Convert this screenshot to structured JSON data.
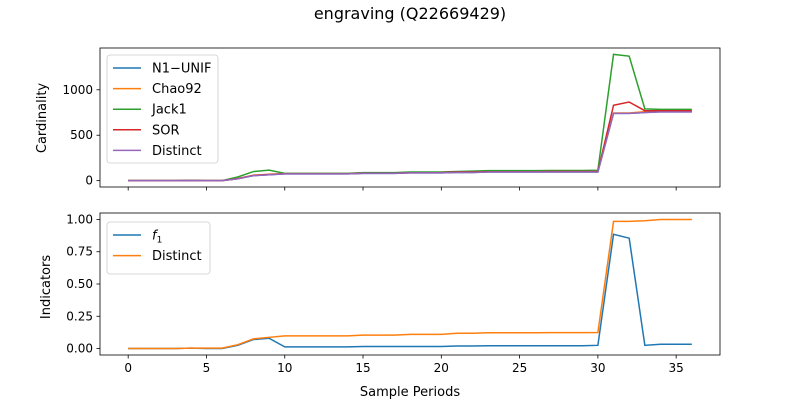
{
  "figure_title": "engraving (Q22669429)",
  "chart_data": [
    {
      "type": "line",
      "ylabel": "Cardinality",
      "xlabel": "",
      "xlim": [
        -1.8,
        37.8
      ],
      "ylim": [
        -70,
        1460
      ],
      "xticks": [
        0,
        5,
        10,
        15,
        20,
        25,
        30,
        35
      ],
      "xtick_labels": [
        "",
        "",
        "",
        "",
        "",
        "",
        "",
        ""
      ],
      "yticks": [
        0,
        500,
        1000
      ],
      "ytick_labels": [
        "0",
        "500",
        "1000"
      ],
      "legend_position": "upper left",
      "x": [
        0,
        1,
        2,
        3,
        4,
        5,
        6,
        7,
        8,
        9,
        10,
        11,
        12,
        13,
        14,
        15,
        16,
        17,
        18,
        19,
        20,
        21,
        22,
        23,
        24,
        25,
        26,
        27,
        28,
        29,
        30,
        31,
        32,
        33,
        34,
        35,
        36
      ],
      "series": [
        {
          "name": "N1−UNIF",
          "color": "#1f77b4",
          "values": [
            0,
            0,
            0,
            0,
            2,
            0,
            0,
            20,
            55,
            65,
            75,
            75,
            75,
            75,
            75,
            80,
            80,
            80,
            85,
            85,
            85,
            90,
            90,
            95,
            95,
            95,
            95,
            95,
            95,
            95,
            95,
            740,
            740,
            750,
            760,
            760,
            760
          ]
        },
        {
          "name": "Chao92",
          "color": "#ff7f0e",
          "values": [
            0,
            0,
            0,
            0,
            2,
            0,
            0,
            22,
            60,
            70,
            78,
            78,
            78,
            78,
            78,
            85,
            85,
            85,
            88,
            88,
            90,
            95,
            95,
            98,
            98,
            98,
            98,
            100,
            100,
            100,
            100,
            745,
            745,
            760,
            775,
            775,
            775
          ]
        },
        {
          "name": "Jack1",
          "color": "#2ca02c",
          "values": [
            0,
            0,
            0,
            0,
            3,
            0,
            0,
            40,
            100,
            115,
            80,
            80,
            80,
            80,
            80,
            88,
            88,
            88,
            95,
            95,
            95,
            100,
            105,
            110,
            110,
            110,
            110,
            112,
            112,
            112,
            115,
            1390,
            1370,
            790,
            785,
            785,
            785
          ]
        },
        {
          "name": "SOR",
          "color": "#d62728",
          "values": [
            0,
            0,
            0,
            0,
            2,
            0,
            0,
            22,
            58,
            68,
            76,
            76,
            76,
            76,
            76,
            82,
            82,
            82,
            87,
            87,
            88,
            95,
            95,
            98,
            98,
            98,
            98,
            100,
            100,
            100,
            100,
            830,
            865,
            770,
            770,
            770,
            770
          ]
        },
        {
          "name": "Distinct",
          "color": "#9467bd",
          "values": [
            0,
            0,
            0,
            0,
            2,
            0,
            0,
            20,
            55,
            65,
            75,
            75,
            75,
            75,
            75,
            80,
            80,
            80,
            85,
            85,
            85,
            90,
            90,
            95,
            95,
            95,
            95,
            95,
            95,
            95,
            95,
            740,
            740,
            750,
            755,
            755,
            755
          ]
        }
      ]
    },
    {
      "type": "line",
      "ylabel": "Indicators",
      "xlabel": "Sample Periods",
      "xlim": [
        -1.8,
        37.8
      ],
      "ylim": [
        -0.05,
        1.05
      ],
      "xticks": [
        0,
        5,
        10,
        15,
        20,
        25,
        30,
        35
      ],
      "xtick_labels": [
        "0",
        "5",
        "10",
        "15",
        "20",
        "25",
        "30",
        "35"
      ],
      "yticks": [
        0,
        0.25,
        0.5,
        0.75,
        1.0
      ],
      "ytick_labels": [
        "0.00",
        "0.25",
        "0.50",
        "0.75",
        "1.00"
      ],
      "legend_position": "upper left",
      "x": [
        0,
        1,
        2,
        3,
        4,
        5,
        6,
        7,
        8,
        9,
        10,
        11,
        12,
        13,
        14,
        15,
        16,
        17,
        18,
        19,
        20,
        21,
        22,
        23,
        24,
        25,
        26,
        27,
        28,
        29,
        30,
        31,
        32,
        33,
        34,
        35,
        36
      ],
      "series": [
        {
          "name": "f",
          "name_subscript": "1",
          "color": "#1f77b4",
          "values": [
            0.0,
            0.0,
            0.0,
            0.0,
            0.003,
            0.0,
            0.0,
            0.025,
            0.07,
            0.08,
            0.013,
            0.013,
            0.013,
            0.013,
            0.013,
            0.016,
            0.016,
            0.016,
            0.016,
            0.016,
            0.016,
            0.02,
            0.02,
            0.022,
            0.022,
            0.022,
            0.022,
            0.022,
            0.022,
            0.022,
            0.025,
            0.885,
            0.855,
            0.025,
            0.033,
            0.033,
            0.033
          ]
        },
        {
          "name": "Distinct",
          "color": "#ff7f0e",
          "values": [
            0.0,
            0.0,
            0.0,
            0.0,
            0.003,
            0.003,
            0.003,
            0.03,
            0.075,
            0.087,
            0.098,
            0.098,
            0.098,
            0.098,
            0.098,
            0.104,
            0.104,
            0.104,
            0.11,
            0.11,
            0.11,
            0.118,
            0.118,
            0.122,
            0.122,
            0.122,
            0.122,
            0.123,
            0.123,
            0.123,
            0.124,
            0.985,
            0.985,
            0.99,
            1.0,
            1.0,
            1.0
          ]
        }
      ]
    }
  ]
}
